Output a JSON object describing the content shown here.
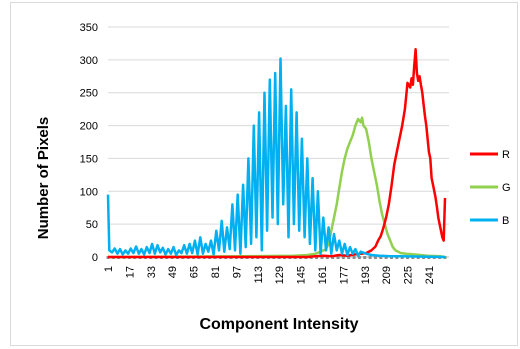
{
  "chart_data": {
    "type": "line",
    "xlabel": "Component Intensity",
    "ylabel": "Number of Pixels",
    "ylim": [
      0,
      350
    ],
    "yticks": [
      0,
      50,
      100,
      150,
      200,
      250,
      300,
      350
    ],
    "xlim": [
      1,
      256
    ],
    "xticks": [
      "1",
      "17",
      "33",
      "49",
      "65",
      "81",
      "97",
      "113",
      "129",
      "145",
      "161",
      "177",
      "193",
      "209",
      "225",
      "241"
    ],
    "grid": "horizontal",
    "legend_position": "right",
    "series": [
      {
        "name": "R",
        "color": "#ff0000",
        "points": [
          [
            1,
            0
          ],
          [
            150,
            0
          ],
          [
            156,
            1
          ],
          [
            162,
            2
          ],
          [
            168,
            1
          ],
          [
            174,
            3
          ],
          [
            180,
            2
          ],
          [
            186,
            4
          ],
          [
            190,
            5
          ],
          [
            194,
            6
          ],
          [
            198,
            10
          ],
          [
            201,
            16
          ],
          [
            203,
            25
          ],
          [
            205,
            32
          ],
          [
            207,
            45
          ],
          [
            209,
            60
          ],
          [
            211,
            80
          ],
          [
            213,
            108
          ],
          [
            215,
            140
          ],
          [
            217,
            160
          ],
          [
            219,
            180
          ],
          [
            221,
            200
          ],
          [
            223,
            225
          ],
          [
            225,
            265
          ],
          [
            227,
            258
          ],
          [
            228,
            272
          ],
          [
            229,
            262
          ],
          [
            230,
            290
          ],
          [
            231,
            316
          ],
          [
            232,
            280
          ],
          [
            233,
            268
          ],
          [
            234,
            275
          ],
          [
            235,
            262
          ],
          [
            236,
            250
          ],
          [
            237,
            232
          ],
          [
            238,
            215
          ],
          [
            239,
            200
          ],
          [
            240,
            180
          ],
          [
            241,
            160
          ],
          [
            242,
            150
          ],
          [
            243,
            120
          ],
          [
            244,
            110
          ],
          [
            245,
            100
          ],
          [
            246,
            90
          ],
          [
            247,
            75
          ],
          [
            248,
            60
          ],
          [
            249,
            50
          ],
          [
            250,
            40
          ],
          [
            251,
            30
          ],
          [
            252,
            25
          ],
          [
            253,
            90
          ]
        ]
      },
      {
        "name": "G",
        "color": "#92d050",
        "points": [
          [
            1,
            0
          ],
          [
            100,
            1
          ],
          [
            140,
            2
          ],
          [
            150,
            3
          ],
          [
            156,
            5
          ],
          [
            160,
            8
          ],
          [
            164,
            12
          ],
          [
            166,
            20
          ],
          [
            168,
            40
          ],
          [
            170,
            60
          ],
          [
            172,
            80
          ],
          [
            174,
            105
          ],
          [
            176,
            130
          ],
          [
            178,
            150
          ],
          [
            180,
            165
          ],
          [
            182,
            175
          ],
          [
            184,
            185
          ],
          [
            186,
            200
          ],
          [
            188,
            210
          ],
          [
            190,
            205
          ],
          [
            191,
            212
          ],
          [
            192,
            200
          ],
          [
            194,
            195
          ],
          [
            196,
            175
          ],
          [
            198,
            150
          ],
          [
            200,
            130
          ],
          [
            202,
            110
          ],
          [
            204,
            85
          ],
          [
            206,
            65
          ],
          [
            208,
            50
          ],
          [
            210,
            35
          ],
          [
            212,
            25
          ],
          [
            214,
            15
          ],
          [
            216,
            10
          ],
          [
            218,
            8
          ],
          [
            220,
            6
          ],
          [
            224,
            5
          ],
          [
            230,
            4
          ],
          [
            240,
            2
          ],
          [
            250,
            1
          ],
          [
            253,
            0
          ]
        ]
      },
      {
        "name": "B",
        "color": "#00b0f0",
        "points": [
          [
            1,
            95
          ],
          [
            2,
            10
          ],
          [
            4,
            7
          ],
          [
            6,
            13
          ],
          [
            8,
            5
          ],
          [
            10,
            12
          ],
          [
            12,
            4
          ],
          [
            14,
            10
          ],
          [
            16,
            5
          ],
          [
            18,
            13
          ],
          [
            20,
            6
          ],
          [
            22,
            16
          ],
          [
            24,
            5
          ],
          [
            26,
            12
          ],
          [
            28,
            4
          ],
          [
            30,
            15
          ],
          [
            32,
            6
          ],
          [
            34,
            20
          ],
          [
            36,
            5
          ],
          [
            38,
            18
          ],
          [
            40,
            7
          ],
          [
            42,
            14
          ],
          [
            44,
            4
          ],
          [
            46,
            12
          ],
          [
            48,
            5
          ],
          [
            50,
            15
          ],
          [
            52,
            3
          ],
          [
            54,
            10
          ],
          [
            56,
            6
          ],
          [
            58,
            18
          ],
          [
            60,
            5
          ],
          [
            62,
            20
          ],
          [
            64,
            6
          ],
          [
            66,
            25
          ],
          [
            68,
            4
          ],
          [
            70,
            30
          ],
          [
            72,
            5
          ],
          [
            74,
            20
          ],
          [
            76,
            8
          ],
          [
            78,
            25
          ],
          [
            80,
            4
          ],
          [
            82,
            40
          ],
          [
            84,
            10
          ],
          [
            86,
            55
          ],
          [
            88,
            8
          ],
          [
            90,
            45
          ],
          [
            92,
            12
          ],
          [
            94,
            80
          ],
          [
            96,
            10
          ],
          [
            98,
            95
          ],
          [
            100,
            5
          ],
          [
            102,
            110
          ],
          [
            104,
            15
          ],
          [
            106,
            150
          ],
          [
            108,
            20
          ],
          [
            110,
            200
          ],
          [
            112,
            30
          ],
          [
            114,
            220
          ],
          [
            116,
            10
          ],
          [
            118,
            250
          ],
          [
            120,
            40
          ],
          [
            122,
            270
          ],
          [
            124,
            60
          ],
          [
            126,
            280
          ],
          [
            128,
            50
          ],
          [
            130,
            302
          ],
          [
            132,
            80
          ],
          [
            134,
            230
          ],
          [
            136,
            30
          ],
          [
            138,
            255
          ],
          [
            140,
            50
          ],
          [
            142,
            220
          ],
          [
            144,
            40
          ],
          [
            146,
            180
          ],
          [
            148,
            30
          ],
          [
            150,
            150
          ],
          [
            152,
            20
          ],
          [
            154,
            120
          ],
          [
            156,
            10
          ],
          [
            158,
            100
          ],
          [
            160,
            5
          ],
          [
            162,
            60
          ],
          [
            164,
            10
          ],
          [
            166,
            45
          ],
          [
            168,
            5
          ],
          [
            170,
            35
          ],
          [
            172,
            10
          ],
          [
            174,
            25
          ],
          [
            176,
            5
          ],
          [
            178,
            20
          ],
          [
            180,
            3
          ],
          [
            182,
            15
          ],
          [
            184,
            5
          ],
          [
            186,
            12
          ],
          [
            188,
            2
          ],
          [
            190,
            8
          ],
          [
            194,
            5
          ],
          [
            198,
            3
          ],
          [
            204,
            2
          ],
          [
            212,
            1
          ],
          [
            220,
            1
          ],
          [
            253,
            0
          ]
        ]
      }
    ]
  }
}
